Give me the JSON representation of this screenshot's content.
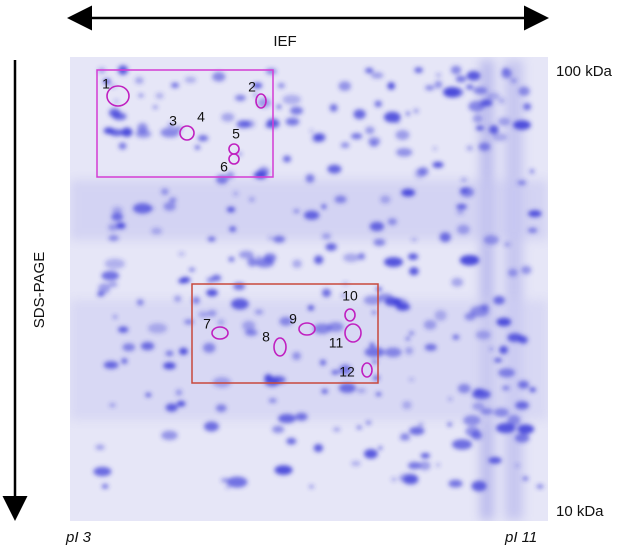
{
  "axes": {
    "top": "IEF",
    "left": "SDS-PAGE",
    "top_right": "100 kDa",
    "bottom_right": "10 kDa",
    "bottom_left": "pI 3",
    "bottom_right_pi": "pI 11"
  },
  "spots": [
    {
      "label": "1"
    },
    {
      "label": "2"
    },
    {
      "label": "3"
    },
    {
      "label": "4"
    },
    {
      "label": "5"
    },
    {
      "label": "6"
    },
    {
      "label": "7"
    },
    {
      "label": "8"
    },
    {
      "label": "9"
    },
    {
      "label": "10"
    },
    {
      "label": "11"
    },
    {
      "label": "12"
    }
  ]
}
